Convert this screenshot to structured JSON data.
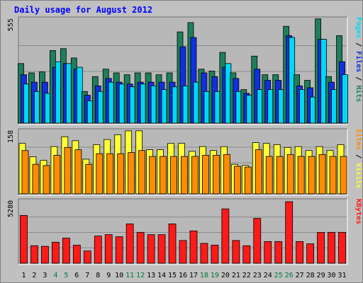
{
  "chart_data": {
    "type": "bar",
    "title": "Daily usage for August 2012",
    "x": [
      1,
      2,
      3,
      4,
      5,
      6,
      7,
      8,
      9,
      10,
      11,
      12,
      13,
      14,
      15,
      16,
      17,
      18,
      19,
      20,
      21,
      22,
      23,
      24,
      25,
      26,
      27,
      28,
      29,
      30,
      31
    ],
    "weekend_days": [
      4,
      5,
      11,
      12,
      18,
      19,
      25,
      26
    ],
    "colors": {
      "background": "#c0c0c0",
      "panel": "#b8b8b8",
      "title": "#0000ff",
      "weekday_label": "#000000",
      "weekend_label": "#007a3d",
      "hits": "#1e7f5a",
      "files": "#1030e0",
      "pages": "#00d8f8",
      "visits": "#ffff33",
      "sites": "#ff8c00",
      "kbytes": "#ff1a1a"
    },
    "panels": [
      {
        "id": "hits",
        "ymax_label": "555",
        "ylim": [
          0,
          555
        ],
        "legend": [
          {
            "text": "Pages",
            "color": "#00d8f8"
          },
          {
            "text": " / ",
            "color": "#000000"
          },
          {
            "text": "Files",
            "color": "#1030e0"
          },
          {
            "text": " / ",
            "color": "#000000"
          },
          {
            "text": "Hits",
            "color": "#1e7f5a"
          }
        ],
        "series": [
          {
            "name": "Hits",
            "color": "#1e7f5a",
            "values": [
              320,
              270,
              275,
              390,
              400,
              350,
              170,
              250,
              290,
              270,
              260,
              270,
              270,
              260,
              270,
              490,
              540,
              290,
              280,
              380,
              270,
              180,
              360,
              260,
              260,
              520,
              260,
              230,
              560,
              250,
              470
            ]
          },
          {
            "name": "Files",
            "color": "#1030e0",
            "values": [
              260,
              220,
              220,
              300,
              320,
              290,
              150,
              200,
              240,
              220,
              210,
              220,
              220,
              220,
              220,
              410,
              460,
              270,
              250,
              300,
              240,
              160,
              290,
              230,
              230,
              470,
              200,
              190,
              450,
              220,
              330
            ]
          },
          {
            "name": "Pages",
            "color": "#00d8f8",
            "values": [
              210,
              170,
              160,
              330,
              320,
              300,
              120,
              170,
              220,
              210,
              195,
              210,
              200,
              180,
              195,
              200,
              220,
              170,
              170,
              320,
              170,
              150,
              180,
              180,
              180,
              460,
              180,
              140,
              450,
              180,
              260
            ]
          }
        ]
      },
      {
        "id": "visits",
        "ymax_label": "158",
        "ylim": [
          0,
          158
        ],
        "legend": [
          {
            "text": "Sites",
            "color": "#ff8c00"
          },
          {
            "text": " / ",
            "color": "#000000"
          },
          {
            "text": "Visits",
            "color": "#ffff33"
          }
        ],
        "series": [
          {
            "name": "Visits",
            "color": "#ffff33",
            "values": [
              128,
              94,
              85,
              120,
              145,
              135,
              88,
              125,
              138,
              150,
              160,
              160,
              112,
              112,
              128,
              128,
              108,
              120,
              110,
              120,
              75,
              72,
              130,
              128,
              125,
              118,
              120,
              110,
              120,
              110,
              125
            ]
          },
          {
            "name": "Sites",
            "color": "#ff8c00",
            "values": [
              110,
              75,
              72,
              98,
              118,
              112,
              75,
              102,
              102,
              102,
              105,
              110,
              95,
              95,
              95,
              95,
              95,
              98,
              98,
              100,
              70,
              68,
              112,
              95,
              95,
              100,
              95,
              95,
              100,
              95,
              95
            ]
          }
        ]
      },
      {
        "id": "kbytes",
        "ymax_label": "5280",
        "ylim": [
          0,
          5280
        ],
        "legend": [
          {
            "text": "KBytes",
            "color": "#ff1a1a"
          }
        ],
        "series": [
          {
            "name": "KBytes",
            "color": "#ff1a1a",
            "values": [
              4100,
              1500,
              1450,
              1800,
              2150,
              1550,
              1050,
              2330,
              2450,
              2270,
              3370,
              2650,
              2450,
              2450,
              3370,
              1950,
              2770,
              1700,
              1550,
              4660,
              1950,
              1500,
              3850,
              1860,
              1860,
              5280,
              1860,
              1660,
              2640,
              2650,
              2650
            ]
          }
        ]
      }
    ]
  }
}
